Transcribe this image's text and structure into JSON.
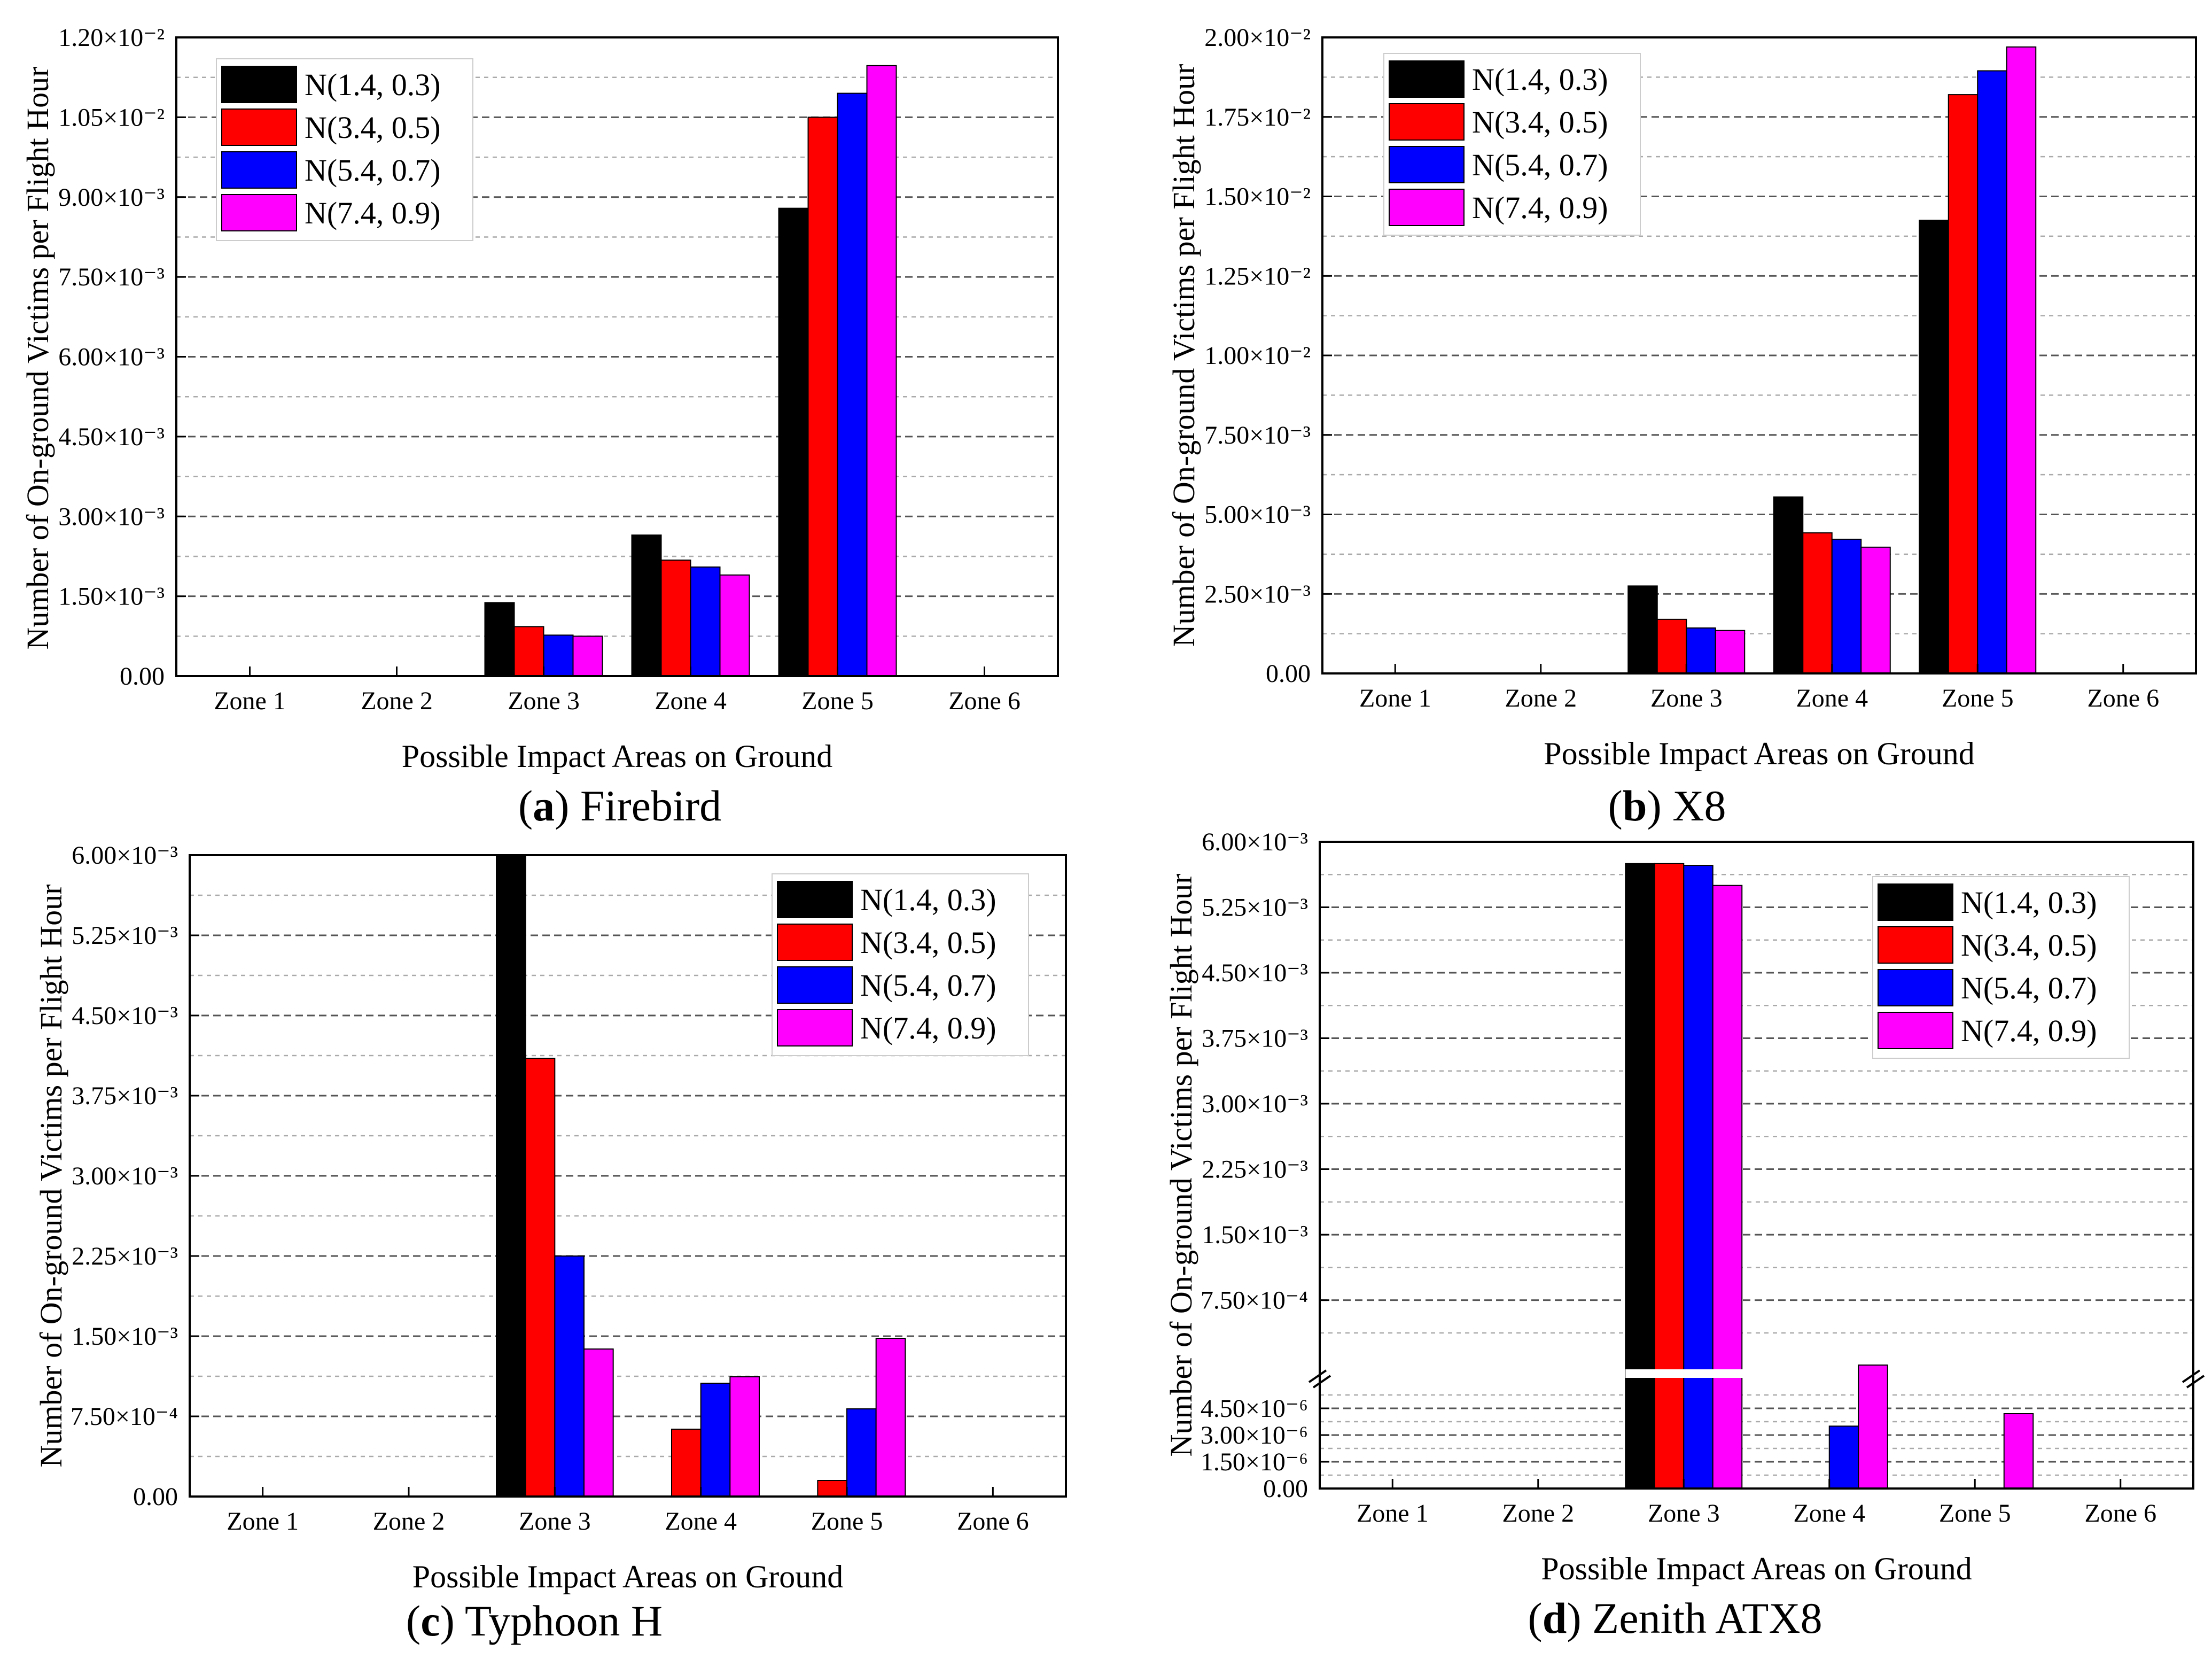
{
  "figure": {
    "categories": [
      "Zone 1",
      "Zone 2",
      "Zone 3",
      "Zone 4",
      "Zone 5",
      "Zone 6"
    ],
    "xlabel": "Possible Impact Areas on Ground",
    "ylabel": "Number of On-ground Victims per Flight Hour",
    "legend": [
      "N(1.4, 0.3)",
      "N(3.4, 0.5)",
      "N(5.4, 0.7)",
      "N(7.4, 0.9)"
    ],
    "series_colors": [
      "#000000",
      "#ff0000",
      "#0000ff",
      "#ff00ff"
    ]
  },
  "chart_data": [
    {
      "type": "bar",
      "caption_letter": "a",
      "caption_text": "Firebird",
      "categories": [
        "Zone 1",
        "Zone 2",
        "Zone 3",
        "Zone 4",
        "Zone 5",
        "Zone 6"
      ],
      "series": [
        {
          "name": "N(1.4, 0.3)",
          "values": [
            0,
            0,
            0.00138,
            0.00265,
            0.00879,
            0
          ]
        },
        {
          "name": "N(3.4, 0.5)",
          "values": [
            0,
            0,
            0.00093,
            0.00218,
            0.0105,
            0
          ]
        },
        {
          "name": "N(5.4, 0.7)",
          "values": [
            0,
            0,
            0.00077,
            0.00205,
            0.01095,
            0
          ]
        },
        {
          "name": "N(7.4, 0.9)",
          "values": [
            0,
            0,
            0.00075,
            0.0019,
            0.01147,
            0
          ]
        }
      ],
      "ylim": [
        0,
        0.012
      ],
      "yticks": [
        {
          "v": 0,
          "label": "0.00"
        },
        {
          "v": 0.0015,
          "label": "1.50×10⁻³"
        },
        {
          "v": 0.003,
          "label": "3.00×10⁻³"
        },
        {
          "v": 0.0045,
          "label": "4.50×10⁻³"
        },
        {
          "v": 0.006,
          "label": "6.00×10⁻³"
        },
        {
          "v": 0.0075,
          "label": "7.50×10⁻³"
        },
        {
          "v": 0.009,
          "label": "9.00×10⁻³"
        },
        {
          "v": 0.0105,
          "label": "1.05×10⁻²"
        },
        {
          "v": 0.012,
          "label": "1.20×10⁻²"
        }
      ],
      "xlabel": "Possible Impact Areas on Ground",
      "ylabel": "Number of On-ground Victims per Flight Hour",
      "legend_position": "top-left",
      "grid": "dashed horizontal"
    },
    {
      "type": "bar",
      "caption_letter": "b",
      "caption_text": "X8",
      "categories": [
        "Zone 1",
        "Zone 2",
        "Zone 3",
        "Zone 4",
        "Zone 5",
        "Zone 6"
      ],
      "series": [
        {
          "name": "N(1.4, 0.3)",
          "values": [
            0,
            0,
            0.00275,
            0.00555,
            0.01425,
            0
          ]
        },
        {
          "name": "N(3.4, 0.5)",
          "values": [
            0,
            0,
            0.0017,
            0.00442,
            0.0182,
            0
          ]
        },
        {
          "name": "N(5.4, 0.7)",
          "values": [
            0,
            0,
            0.00143,
            0.00422,
            0.01895,
            0
          ]
        },
        {
          "name": "N(7.4, 0.9)",
          "values": [
            0,
            0,
            0.00135,
            0.00397,
            0.0197,
            0
          ]
        }
      ],
      "ylim": [
        0,
        0.02
      ],
      "yticks": [
        {
          "v": 0,
          "label": "0.00"
        },
        {
          "v": 0.0025,
          "label": "2.50×10⁻³"
        },
        {
          "v": 0.005,
          "label": "5.00×10⁻³"
        },
        {
          "v": 0.0075,
          "label": "7.50×10⁻³"
        },
        {
          "v": 0.01,
          "label": "1.00×10⁻²"
        },
        {
          "v": 0.0125,
          "label": "1.25×10⁻²"
        },
        {
          "v": 0.015,
          "label": "1.50×10⁻²"
        },
        {
          "v": 0.0175,
          "label": "1.75×10⁻²"
        },
        {
          "v": 0.02,
          "label": "2.00×10⁻²"
        }
      ],
      "xlabel": "Possible Impact Areas on Ground",
      "ylabel": "Number of On-ground Victims per Flight Hour",
      "legend_position": "top-left",
      "grid": "dashed horizontal"
    },
    {
      "type": "bar",
      "caption_letter": "c",
      "caption_text": "Typhoon H",
      "categories": [
        "Zone 1",
        "Zone 2",
        "Zone 3",
        "Zone 4",
        "Zone 5",
        "Zone 6"
      ],
      "series": [
        {
          "name": "N(1.4, 0.3)",
          "values": [
            0,
            0,
            0.006,
            0,
            0,
            0
          ]
        },
        {
          "name": "N(3.4, 0.5)",
          "values": [
            0,
            0,
            0.0041,
            0.00063,
            0.00015,
            0
          ]
        },
        {
          "name": "N(5.4, 0.7)",
          "values": [
            0,
            0,
            0.00225,
            0.00106,
            0.00082,
            0
          ]
        },
        {
          "name": "N(7.4, 0.9)",
          "values": [
            0,
            0,
            0.00138,
            0.00112,
            0.00148,
            0
          ]
        }
      ],
      "ylim": [
        0,
        0.006
      ],
      "yticks": [
        {
          "v": 0,
          "label": "0.00"
        },
        {
          "v": 0.00075,
          "label": "7.50×10⁻⁴"
        },
        {
          "v": 0.0015,
          "label": "1.50×10⁻³"
        },
        {
          "v": 0.00225,
          "label": "2.25×10⁻³"
        },
        {
          "v": 0.003,
          "label": "3.00×10⁻³"
        },
        {
          "v": 0.00375,
          "label": "3.75×10⁻³"
        },
        {
          "v": 0.0045,
          "label": "4.50×10⁻³"
        },
        {
          "v": 0.00525,
          "label": "5.25×10⁻³"
        },
        {
          "v": 0.006,
          "label": "6.00×10⁻³"
        }
      ],
      "xlabel": "Possible Impact Areas on Ground",
      "ylabel": "Number of On-ground Victims per Flight Hour",
      "legend_position": "top-right",
      "grid": "dashed horizontal"
    },
    {
      "type": "bar",
      "caption_letter": "d",
      "caption_text": "Zenith ATX8",
      "categories": [
        "Zone 1",
        "Zone 2",
        "Zone 3",
        "Zone 4",
        "Zone 5",
        "Zone 6"
      ],
      "series": [
        {
          "name": "N(1.4, 0.3)",
          "values": [
            0,
            0,
            0.00575,
            0,
            0,
            0
          ]
        },
        {
          "name": "N(3.4, 0.5)",
          "values": [
            0,
            0,
            0.00575,
            0,
            0,
            0
          ]
        },
        {
          "name": "N(5.4, 0.7)",
          "values": [
            0,
            0,
            0.00573,
            3.5e-06,
            0,
            0
          ]
        },
        {
          "name": "N(7.4, 0.9)",
          "values": [
            0,
            0,
            0.0055,
            6.5e-06,
            4.2e-06,
            0
          ]
        }
      ],
      "axis_break": true,
      "ylim_lower": [
        0,
        6e-06
      ],
      "ylim_upper": [
        6e-07,
        0.006
      ],
      "yticks_lower": [
        {
          "v": 0,
          "label": "0.00"
        },
        {
          "v": 1.5e-06,
          "label": "1.50×10⁻⁶"
        },
        {
          "v": 3e-06,
          "label": "3.00×10⁻⁶"
        },
        {
          "v": 4.5e-06,
          "label": "4.50×10⁻⁶"
        }
      ],
      "yticks_upper": [
        {
          "v": 0.00075,
          "label": "7.50×10⁻⁴"
        },
        {
          "v": 0.0015,
          "label": "1.50×10⁻³"
        },
        {
          "v": 0.00225,
          "label": "2.25×10⁻³"
        },
        {
          "v": 0.003,
          "label": "3.00×10⁻³"
        },
        {
          "v": 0.00375,
          "label": "3.75×10⁻³"
        },
        {
          "v": 0.0045,
          "label": "4.50×10⁻³"
        },
        {
          "v": 0.00525,
          "label": "5.25×10⁻³"
        },
        {
          "v": 0.006,
          "label": "6.00×10⁻³"
        }
      ],
      "xlabel": "Possible Impact Areas on Ground",
      "ylabel": "Number of On-ground Victims per Flight Hour",
      "legend_position": "top-right",
      "grid": "dashed horizontal"
    }
  ]
}
